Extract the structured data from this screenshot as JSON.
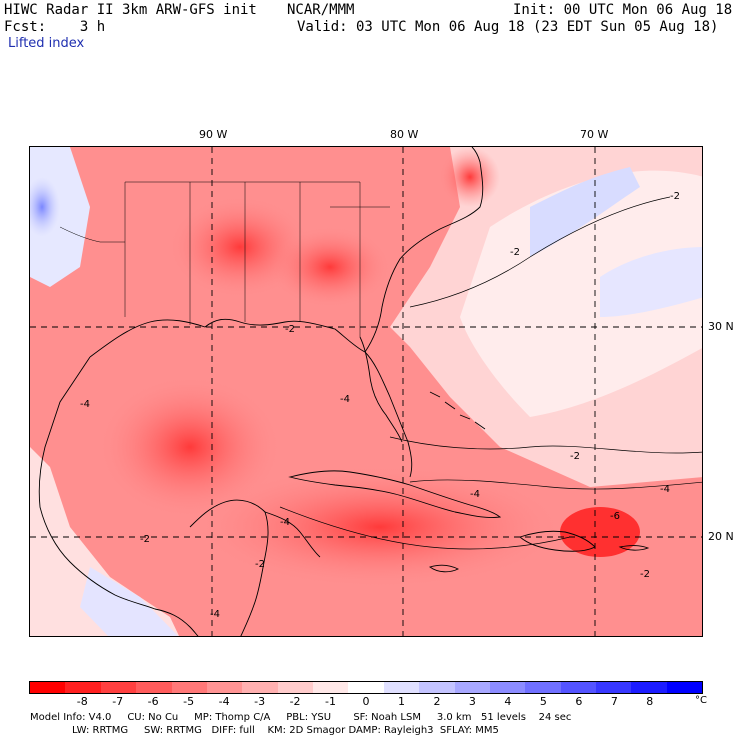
{
  "header": {
    "model_title": "HIWC Radar II 3km ARW-GFS init",
    "org": "NCAR/MMM",
    "init": "Init: 00 UTC Mon 06 Aug 18",
    "fcst": "Fcst:    3 h",
    "valid": "Valid: 03 UTC Mon 06 Aug 18 (23 EDT Sun 05 Aug 18)",
    "field": "Lifted index"
  },
  "map": {
    "lon_labels": [
      "90 W",
      "80 W",
      "70 W"
    ],
    "lat_labels": [
      "30 N",
      "20 N"
    ],
    "contour_labels": [
      "-2",
      "-2",
      "-2",
      "-2",
      "-4",
      "-4",
      "-4",
      "-4",
      "-2",
      "-6",
      "-2",
      "-4",
      "-2",
      "-4"
    ]
  },
  "colorbar": {
    "ticks": [
      "-8",
      "-7",
      "-6",
      "-5",
      "-4",
      "-3",
      "-2",
      "-1",
      "0",
      "1",
      "2",
      "3",
      "4",
      "5",
      "6",
      "7",
      "8"
    ],
    "unit": "°C",
    "colors": [
      "#ff0000",
      "#ff2020",
      "#ff4040",
      "#ff5c5c",
      "#ff7878",
      "#ff9494",
      "#ffb0b0",
      "#ffcccc",
      "#ffe8e8",
      "#ffffff",
      "#e0e0ff",
      "#c4c4ff",
      "#a8a8ff",
      "#8c8cff",
      "#7070ff",
      "#5454ff",
      "#3838ff",
      "#1c1cff",
      "#0000ff"
    ]
  },
  "footer": {
    "line1": "Model Info: V4.0     CU: No Cu     MP: Thomp C/A     PBL: YSU       SF: Noah LSM     3.0 km   51 levels    24 sec",
    "line2": "LW: RRTMG     SW: RRTMG   DIFF: full    KM: 2D Smagor DAMP: Rayleigh3  SFLAY: MM5"
  }
}
